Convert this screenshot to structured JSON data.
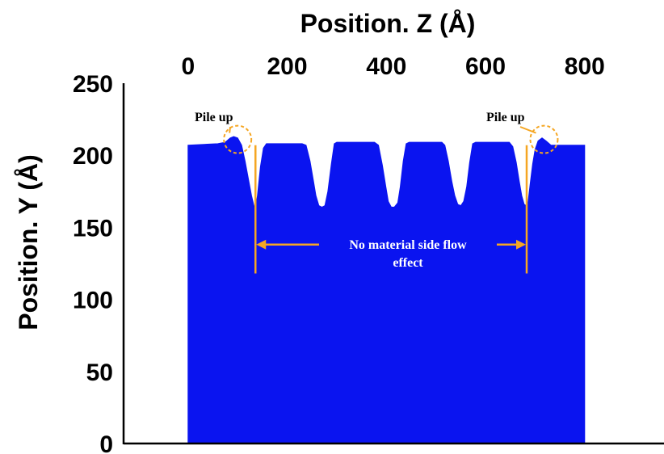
{
  "chart_data": {
    "type": "area",
    "title": "",
    "xlabel": "Position. Z (Å)",
    "ylabel": "Position. Y (Å)",
    "x_axis_position": "top",
    "xlim": [
      -130,
      960
    ],
    "ylim": [
      0,
      250
    ],
    "x_ticks": [
      0,
      200,
      400,
      600,
      800
    ],
    "y_ticks": [
      0,
      50,
      100,
      150,
      200,
      250
    ],
    "grid": false,
    "legend": "none",
    "colors": {
      "fill": "#0a14f0",
      "annotation": "#f5a623"
    },
    "series": [
      {
        "profile": [
          [
            0,
            207
          ],
          [
            60,
            208
          ],
          [
            75,
            209
          ],
          [
            85,
            212
          ],
          [
            92,
            213
          ],
          [
            100,
            212
          ],
          [
            108,
            207
          ],
          [
            115,
            196
          ],
          [
            122,
            183
          ],
          [
            128,
            172
          ],
          [
            133,
            165
          ],
          [
            136,
            163
          ],
          [
            140,
            172
          ],
          [
            146,
            192
          ],
          [
            152,
            205
          ],
          [
            158,
            208
          ],
          [
            230,
            208
          ],
          [
            238,
            207
          ],
          [
            246,
            196
          ],
          [
            253,
            182
          ],
          [
            258,
            172
          ],
          [
            264,
            165
          ],
          [
            270,
            164
          ],
          [
            276,
            165
          ],
          [
            282,
            175
          ],
          [
            289,
            194
          ],
          [
            295,
            208
          ],
          [
            300,
            209
          ],
          [
            376,
            209
          ],
          [
            384,
            207
          ],
          [
            392,
            193
          ],
          [
            399,
            178
          ],
          [
            404,
            168
          ],
          [
            410,
            164
          ],
          [
            416,
            164
          ],
          [
            423,
            167
          ],
          [
            428,
            178
          ],
          [
            434,
            196
          ],
          [
            440,
            208
          ],
          [
            446,
            209
          ],
          [
            512,
            209
          ],
          [
            518,
            207
          ],
          [
            525,
            196
          ],
          [
            532,
            182
          ],
          [
            538,
            172
          ],
          [
            544,
            166
          ],
          [
            550,
            165
          ],
          [
            556,
            168
          ],
          [
            562,
            178
          ],
          [
            568,
            195
          ],
          [
            574,
            208
          ],
          [
            580,
            209
          ],
          [
            648,
            209
          ],
          [
            655,
            206
          ],
          [
            662,
            195
          ],
          [
            668,
            182
          ],
          [
            673,
            172
          ],
          [
            678,
            166
          ],
          [
            682,
            165
          ],
          [
            686,
            168
          ],
          [
            690,
            180
          ],
          [
            695,
            194
          ],
          [
            700,
            204
          ],
          [
            706,
            210
          ],
          [
            714,
            212
          ],
          [
            722,
            210
          ],
          [
            732,
            207
          ],
          [
            800,
            207
          ]
        ]
      }
    ],
    "annotations": {
      "pile_up_left": "Pile up",
      "pile_up_right": "Pile up",
      "flow_line1": "No material side flow",
      "flow_line2": "effect"
    },
    "markers": {
      "left_circle": {
        "x": 100,
        "y": 211
      },
      "right_circle": {
        "x": 718,
        "y": 211
      },
      "left_vline_x": 136,
      "right_vline_x": 683,
      "vline_top_y": 207,
      "vline_bottom_y": 118,
      "arrow_y": 138
    }
  }
}
